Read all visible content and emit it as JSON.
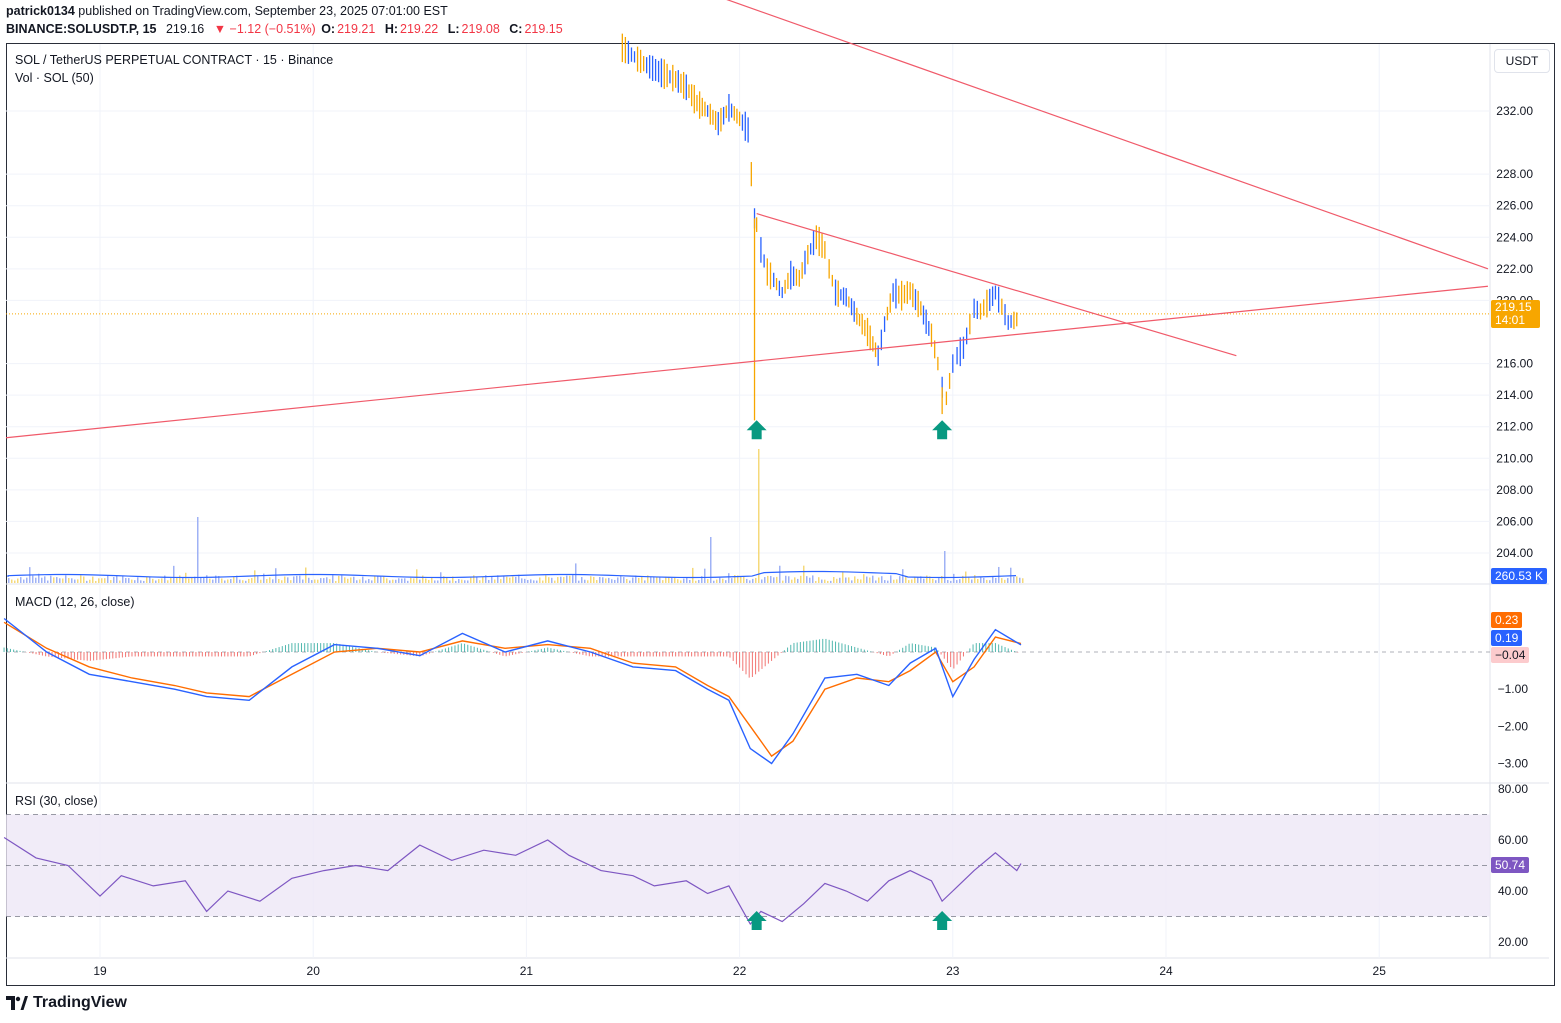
{
  "header": {
    "user": "patrick0134",
    "published": "published on TradingView.com, September 23, 2025 07:01:00 EST",
    "symbol": "BINANCE:SOLUSDT.P, 15",
    "price": "219.16",
    "change": "▼ −1.12 (−0.51%)",
    "o_label": "O:",
    "o": "219.21",
    "h_label": "H:",
    "h": "219.22",
    "l_label": "L:",
    "l": "219.08",
    "c_label": "C:",
    "c": "219.15"
  },
  "legend": {
    "title": "SOL / TetherUS PERPETUAL CONTRACT · 15 · Binance",
    "volume": "Vol · SOL (50)",
    "macd": "MACD (12, 26, close)",
    "rsi": "RSI (30, close)"
  },
  "currency_button": "USDT",
  "price_labels": {
    "last_price": "219.15",
    "countdown": "14:01",
    "volume_ma": "260.53 K",
    "macd_signal": "0.23",
    "macd_line": "0.19",
    "macd_hist": "−0.04",
    "rsi": "50.74"
  },
  "colors": {
    "up": "#089981",
    "down": "#f23645",
    "trendline": "#f05a6a",
    "last_price": "#f7a600",
    "volume_ma": "#2962ff",
    "macd_line": "#2962ff",
    "signal_line": "#ff6d00",
    "rsi_line": "#7e57c2",
    "rsi_band": "#ede7f6",
    "arrow": "#089981",
    "candle_orange": "#f7a600",
    "candle_blue": "#2962ff"
  },
  "footer": {
    "brand": "TradingView"
  },
  "chart_data": {
    "type": "line",
    "title": "SOL / TetherUS PERPETUAL CONTRACT · 15 · Binance",
    "x_ticks": [
      "19",
      "20",
      "21",
      "22",
      "23",
      "24",
      "25"
    ],
    "price_axis": {
      "ticks": [
        "232.00",
        "228.00",
        "226.00",
        "224.00",
        "222.00",
        "220.00",
        "216.00",
        "214.00",
        "212.00",
        "210.00",
        "208.00",
        "206.00",
        "204.00"
      ],
      "range": [
        202.8,
        236.2
      ]
    },
    "price_series": {
      "name": "SOL",
      "x": [
        21.45,
        21.55,
        21.62,
        21.7,
        21.75,
        21.8,
        21.85,
        21.9,
        21.95,
        22.0,
        22.04,
        22.07,
        22.08,
        22.1,
        22.13,
        22.16,
        22.2,
        22.24,
        22.28,
        22.32,
        22.36,
        22.4,
        22.42,
        22.45,
        22.5,
        22.55,
        22.6,
        22.65,
        22.68,
        22.72,
        22.76,
        22.8,
        22.85,
        22.9,
        22.93,
        22.95,
        22.97,
        23.0,
        23.02,
        23.05,
        23.08,
        23.1,
        23.13,
        23.16,
        23.2,
        23.23,
        23.26,
        23.3,
        23.32
      ],
      "y": [
        236,
        235,
        234.5,
        234,
        233.5,
        232.5,
        232,
        231.2,
        232.2,
        231.5,
        230.8,
        225.2,
        224.8,
        223.2,
        221.8,
        221.3,
        220.5,
        221.6,
        221.4,
        222.9,
        224.0,
        223.2,
        222.0,
        220.5,
        220.2,
        219.0,
        218.0,
        216.5,
        218.5,
        220.5,
        220.3,
        220.6,
        219.5,
        217.8,
        216.0,
        214.5,
        213.8,
        216.0,
        216.5,
        217.0,
        218.5,
        219.5,
        219.3,
        219.8,
        220.5,
        219.6,
        218.6,
        218.8,
        219.15
      ]
    },
    "wicks": [
      {
        "x": 22.07,
        "low": 212.4
      },
      {
        "x": 22.95,
        "low": 212.8
      }
    ],
    "last_price": 219.15,
    "trendlines": [
      {
        "name": "upper-resistance",
        "x": [
          21.89,
          25.51
        ],
        "y": [
          239.3,
          222.0
        ]
      },
      {
        "name": "rising-support",
        "x": [
          18.55,
          25.51
        ],
        "y": [
          211.3,
          220.9
        ]
      },
      {
        "name": "triangle-resistance",
        "x": [
          22.08,
          24.33
        ],
        "y": [
          225.5,
          216.5
        ]
      }
    ],
    "buy_arrows": [
      {
        "x": 22.08,
        "price": 211.9
      },
      {
        "x": 22.95,
        "price": 211.9
      }
    ],
    "macd": {
      "ticks": [
        "−1.00",
        "−2.00",
        "−3.00"
      ],
      "range": [
        -3.6,
        1.2
      ],
      "x": [
        18.55,
        18.75,
        18.95,
        19.15,
        19.35,
        19.5,
        19.7,
        19.9,
        20.1,
        20.3,
        20.5,
        20.7,
        20.9,
        21.1,
        21.3,
        21.5,
        21.7,
        21.85,
        21.95,
        22.05,
        22.15,
        22.25,
        22.4,
        22.55,
        22.7,
        22.8,
        22.92,
        23.0,
        23.1,
        23.2,
        23.32
      ],
      "macd_line": [
        0.9,
        0.0,
        -0.6,
        -0.8,
        -1.0,
        -1.2,
        -1.3,
        -0.4,
        0.2,
        0.1,
        -0.1,
        0.5,
        0.0,
        0.3,
        0.0,
        -0.4,
        -0.5,
        -1.0,
        -1.3,
        -2.6,
        -3.0,
        -2.2,
        -0.7,
        -0.6,
        -0.9,
        -0.3,
        0.1,
        -1.2,
        -0.2,
        0.6,
        0.19
      ],
      "signal_line": [
        0.8,
        0.1,
        -0.4,
        -0.7,
        -0.9,
        -1.1,
        -1.2,
        -0.6,
        0.0,
        0.1,
        0.0,
        0.3,
        0.1,
        0.2,
        0.1,
        -0.3,
        -0.4,
        -0.9,
        -1.2,
        -2.0,
        -2.8,
        -2.4,
        -1.0,
        -0.7,
        -0.8,
        -0.5,
        0.0,
        -0.8,
        -0.4,
        0.4,
        0.23
      ]
    },
    "rsi": {
      "ticks": [
        "80.00",
        "60.00",
        "40.00",
        "20.00"
      ],
      "range": [
        18,
        82
      ],
      "band": [
        30,
        70
      ],
      "midline": 50,
      "x": [
        18.55,
        18.7,
        18.85,
        19.0,
        19.1,
        19.25,
        19.4,
        19.5,
        19.6,
        19.75,
        19.9,
        20.05,
        20.2,
        20.35,
        20.5,
        20.65,
        20.8,
        20.95,
        21.1,
        21.2,
        21.35,
        21.5,
        21.6,
        21.75,
        21.85,
        21.95,
        22.05,
        22.1,
        22.2,
        22.3,
        22.4,
        22.5,
        22.6,
        22.7,
        22.8,
        22.9,
        22.95,
        23.0,
        23.1,
        23.2,
        23.3,
        23.32
      ],
      "y": [
        61,
        53,
        50,
        38,
        46,
        42,
        44,
        32,
        40,
        36,
        45,
        48,
        50,
        48,
        58,
        52,
        56,
        54,
        60,
        54,
        48,
        46,
        42,
        44,
        39,
        42,
        27,
        32,
        28,
        35,
        43,
        40,
        36,
        44,
        48,
        44,
        36,
        40,
        48,
        55,
        48,
        50.74
      ]
    }
  }
}
